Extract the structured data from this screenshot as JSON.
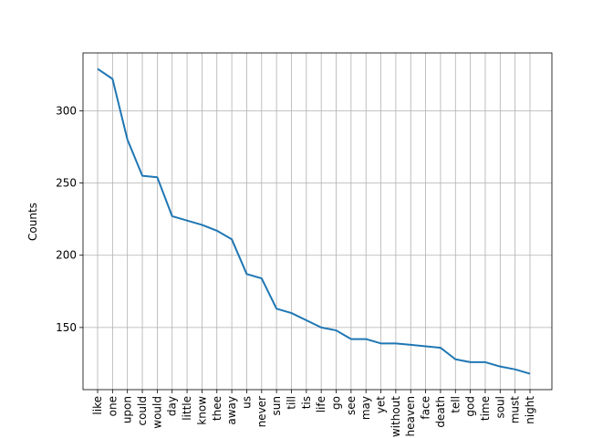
{
  "chart_data": {
    "type": "line",
    "ylabel": "Counts",
    "categories": [
      "like",
      "one",
      "upon",
      "could",
      "would",
      "day",
      "little",
      "know",
      "thee",
      "away",
      "us",
      "never",
      "sun",
      "till",
      "tis",
      "life",
      "go",
      "see",
      "may",
      "yet",
      "without",
      "heaven",
      "face",
      "death",
      "tell",
      "god",
      "time",
      "soul",
      "must",
      "night"
    ],
    "values": [
      329,
      322,
      280,
      255,
      254,
      227,
      224,
      221,
      217,
      211,
      187,
      184,
      163,
      160,
      155,
      150,
      148,
      142,
      142,
      139,
      139,
      138,
      137,
      136,
      128,
      126,
      126,
      123,
      121,
      118
    ],
    "color": "#1f77b4",
    "ylim": [
      107,
      340
    ],
    "yticks": [
      150,
      200,
      250,
      300
    ],
    "grid": true
  }
}
